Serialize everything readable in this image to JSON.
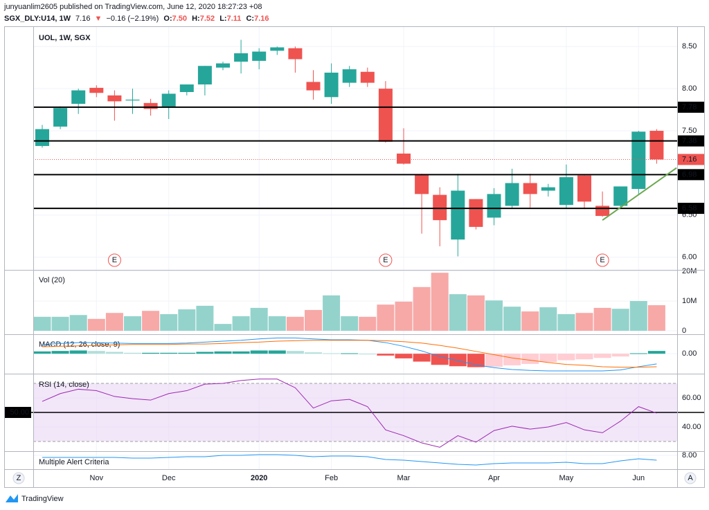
{
  "header": {
    "published": "junyuanlim2605 published on TradingView.com, June 12, 2020 18:27:23 +08",
    "symbol": "SGX_DLY:U14, 1W",
    "last": "7.16",
    "arrow": "▼",
    "change": "−0.16 (−2.19%)",
    "ohlc": [
      {
        "label": "O:",
        "value": "7.50"
      },
      {
        "label": "H:",
        "value": "7.52"
      },
      {
        "label": "L:",
        "value": "7.11"
      },
      {
        "label": "C:",
        "value": "7.16"
      }
    ]
  },
  "ui": {
    "left_button": "Z",
    "right_button": "A",
    "brand": "TradingView"
  },
  "chart_data": [
    {
      "type": "candlestick",
      "title": "UOL, 1W, SGX",
      "categories": [
        null,
        null,
        null,
        "Nov",
        null,
        null,
        null,
        "Dec",
        null,
        null,
        null,
        null,
        "2020",
        null,
        null,
        null,
        "Feb",
        null,
        null,
        null,
        "Mar",
        null,
        null,
        null,
        null,
        "Apr",
        null,
        null,
        null,
        "May",
        null,
        null,
        null,
        "Jun",
        null
      ],
      "open": [
        7.32,
        7.55,
        7.82,
        8.01,
        7.92,
        7.86,
        7.83,
        7.78,
        7.96,
        8.05,
        8.25,
        8.32,
        8.33,
        8.45,
        8.48,
        8.08,
        7.9,
        8.07,
        8.2,
        8.0,
        7.23,
        6.98,
        6.74,
        6.21,
        6.69,
        6.47,
        6.61,
        6.88,
        6.79,
        6.62,
        6.97,
        6.61,
        6.61,
        6.81,
        7.5
      ],
      "high": [
        7.57,
        7.79,
        8.0,
        8.04,
        7.98,
        8.0,
        7.88,
        7.98,
        8.05,
        8.27,
        8.32,
        8.58,
        8.48,
        8.5,
        8.5,
        8.22,
        8.3,
        8.27,
        8.25,
        8.09,
        7.53,
        6.99,
        6.83,
        6.99,
        6.69,
        6.82,
        7.05,
        6.99,
        6.87,
        7.1,
        6.98,
        6.78,
        6.84,
        7.5,
        7.52
      ],
      "low": [
        7.3,
        7.52,
        7.7,
        7.9,
        7.62,
        7.7,
        7.68,
        7.64,
        7.92,
        7.92,
        8.22,
        8.18,
        8.23,
        8.4,
        8.19,
        7.87,
        7.82,
        8.02,
        8.02,
        7.36,
        7.1,
        6.28,
        6.13,
        6.01,
        6.33,
        6.38,
        6.58,
        6.59,
        6.72,
        6.58,
        6.57,
        6.48,
        6.58,
        6.75,
        7.11
      ],
      "close": [
        7.52,
        7.77,
        7.98,
        7.95,
        7.85,
        7.87,
        7.76,
        7.94,
        8.05,
        8.27,
        8.3,
        8.42,
        8.44,
        8.49,
        8.35,
        7.98,
        8.19,
        8.23,
        8.07,
        7.37,
        7.11,
        6.75,
        6.44,
        6.79,
        6.36,
        6.75,
        6.88,
        6.75,
        6.83,
        6.95,
        6.66,
        6.49,
        6.84,
        7.49,
        7.16
      ],
      "up_color": "#26a69a",
      "down_color": "#ef5350",
      "ylim": [
        5.85,
        8.74
      ],
      "yticks": [
        {
          "value": 8.5,
          "label": "8.50"
        },
        {
          "value": 8,
          "label": "8.00"
        },
        {
          "value": 7.5,
          "label": "7.50"
        },
        {
          "value": 6.5,
          "label": "6.50"
        },
        {
          "value": 6,
          "label": "6.00"
        }
      ],
      "levels": [
        7.78,
        7.38,
        6.98,
        6.58
      ],
      "earnings": [
        {
          "index": 4,
          "label": "E"
        },
        {
          "index": 19,
          "label": "E"
        },
        {
          "index": 31,
          "label": "E"
        }
      ],
      "trendline": {
        "from": [
          31,
          6.44
        ],
        "to": [
          35.1,
          7.06
        ],
        "color": "#6aa84f"
      }
    },
    {
      "type": "bar",
      "title": "Vol (20)",
      "values": [
        4.7,
        4.7,
        5.3,
        4.0,
        6.0,
        4.9,
        6.7,
        5.6,
        7.2,
        8.4,
        2.3,
        4.9,
        7.7,
        4.9,
        4.7,
        7.0,
        11.9,
        4.9,
        4.7,
        8.8,
        9.8,
        14.7,
        19.5,
        12.3,
        11.9,
        10.2,
        8.1,
        6.5,
        7.9,
        5.6,
        6.0,
        7.7,
        7.4,
        10.0,
        8.6
      ],
      "up_color": "#94d3cc",
      "down_color": "#f7a9a7",
      "ylim": [
        -1.16,
        20.47
      ],
      "yticks": [
        {
          "value": 20,
          "label": "20M"
        },
        {
          "value": 10,
          "label": "10M"
        },
        0
      ]
    },
    {
      "type": "macd",
      "title": "MACD (12, 26, close, 9)",
      "macd": [
        0.2,
        0.22,
        0.24,
        0.24,
        0.23,
        0.22,
        0.22,
        0.22,
        0.23,
        0.25,
        0.27,
        0.29,
        0.32,
        0.34,
        0.34,
        0.32,
        0.3,
        0.3,
        0.29,
        0.24,
        0.16,
        0.06,
        -0.06,
        -0.15,
        -0.24,
        -0.3,
        -0.34,
        -0.36,
        -0.37,
        -0.37,
        -0.37,
        -0.37,
        -0.35,
        -0.28,
        -0.22
      ],
      "signal": [
        0.15,
        0.16,
        0.17,
        0.18,
        0.19,
        0.2,
        0.2,
        0.2,
        0.21,
        0.21,
        0.22,
        0.24,
        0.25,
        0.27,
        0.28,
        0.29,
        0.29,
        0.29,
        0.29,
        0.28,
        0.26,
        0.23,
        0.18,
        0.12,
        0.05,
        -0.02,
        -0.09,
        -0.14,
        -0.19,
        -0.23,
        -0.25,
        -0.28,
        -0.29,
        -0.29,
        -0.28
      ],
      "histogram": [
        0.05,
        0.06,
        0.07,
        0.06,
        0.04,
        0.02,
        0.02,
        0.02,
        0.02,
        0.04,
        0.05,
        0.05,
        0.07,
        0.07,
        0.06,
        0.03,
        0.01,
        0.01,
        0.0,
        -0.04,
        -0.1,
        -0.17,
        -0.24,
        -0.27,
        -0.29,
        -0.28,
        -0.25,
        -0.22,
        -0.18,
        -0.14,
        -0.12,
        -0.09,
        -0.06,
        0.01,
        0.06
      ],
      "macd_color": "#2196f3",
      "signal_color": "#ff6d00",
      "histogram_colors": [
        "#26a69a",
        "#b2dfdb",
        "#ffcdd2",
        "#ef5350"
      ],
      "ylim": [
        -0.43,
        0.42
      ],
      "yticks": [
        {
          "value": 0,
          "label": "0.00"
        }
      ]
    },
    {
      "type": "line",
      "title": "RSI (14, close)",
      "values": [
        57.6,
        63,
        66,
        65,
        61,
        59.5,
        58.5,
        63,
        65,
        69.5,
        70,
        72,
        73,
        73,
        67,
        53,
        58,
        59,
        54,
        38,
        34,
        29,
        26,
        34,
        29.5,
        37.5,
        40.5,
        38.5,
        40,
        43,
        38,
        36,
        44,
        54,
        49.5
      ],
      "color": "#9c27b0",
      "band": [
        30,
        70
      ],
      "band_color": "#e9d5f5",
      "ylim": [
        23.3,
        76.7
      ],
      "yticks": [
        {
          "value": 60,
          "label": "60.00"
        },
        {
          "value": 40,
          "label": "40.00"
        }
      ],
      "levels": [
        {
          "value": 50,
          "label": "50.00"
        }
      ]
    },
    {
      "type": "line",
      "title": "Multiple Alert Criteria",
      "values": [
        7.85,
        7.85,
        7.85,
        7.85,
        7.85,
        7.8,
        7.8,
        7.85,
        7.9,
        7.9,
        8.0,
        8.0,
        8.05,
        8.05,
        8.0,
        7.9,
        7.95,
        7.95,
        7.9,
        7.7,
        7.65,
        7.55,
        7.45,
        7.35,
        7.3,
        7.4,
        7.45,
        7.45,
        7.45,
        7.5,
        7.4,
        7.4,
        7.6,
        7.75,
        7.65
      ],
      "color": "#2196f3",
      "ylim": [
        7.0,
        8.3
      ],
      "yticks": [
        {
          "value": 8,
          "label": "8.00"
        }
      ]
    }
  ]
}
